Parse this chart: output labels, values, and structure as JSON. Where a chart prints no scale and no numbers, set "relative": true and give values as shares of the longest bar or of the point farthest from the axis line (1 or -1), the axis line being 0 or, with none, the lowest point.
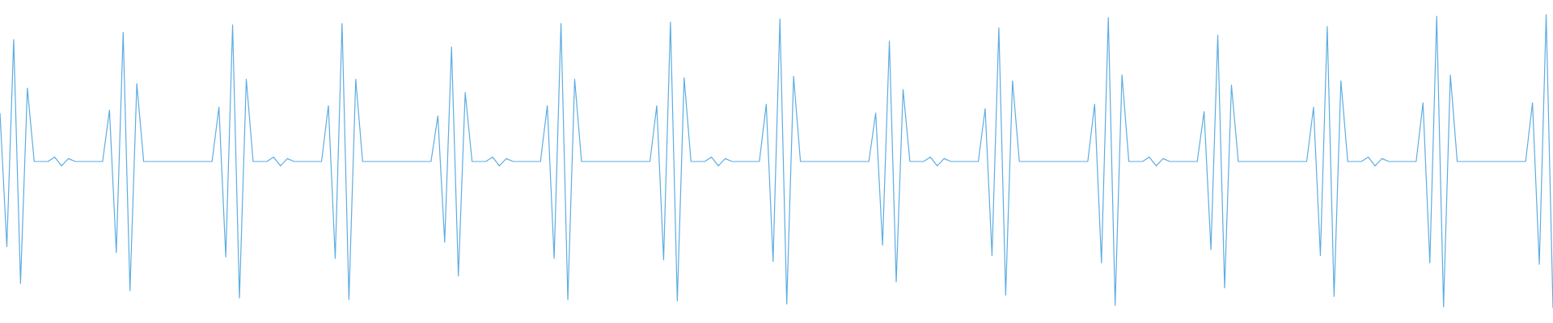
{
  "chart_data": {
    "type": "line",
    "relative": true,
    "color": "#5dade2",
    "categories": [
      null,
      null,
      null,
      null,
      null,
      null,
      null,
      null,
      null,
      null,
      null,
      null,
      null,
      null,
      null,
      null,
      null,
      null,
      null,
      null,
      null,
      null,
      null,
      null,
      null,
      null,
      null,
      null,
      null,
      null,
      null,
      null,
      null,
      null,
      null,
      null,
      null,
      null,
      null,
      null,
      null,
      null,
      null,
      null,
      null,
      null,
      null,
      null,
      null,
      null,
      null,
      null,
      null,
      null,
      null,
      null,
      null,
      null,
      null,
      null,
      null,
      null,
      null,
      null,
      null,
      null,
      null,
      null,
      null,
      null,
      null,
      null,
      null,
      null,
      null,
      null,
      null,
      null,
      null,
      null,
      null,
      null,
      null,
      null,
      null,
      null,
      null,
      null,
      null,
      null,
      null,
      null,
      null,
      null,
      null,
      null,
      null,
      null,
      null,
      null,
      null,
      null,
      null,
      null,
      null,
      null,
      null,
      null,
      null,
      null,
      null,
      null,
      null,
      null,
      null,
      null,
      null,
      null,
      null,
      null,
      null,
      null,
      null,
      null,
      null,
      null,
      null,
      null,
      null,
      null,
      null,
      null,
      null,
      null,
      null,
      null,
      null,
      null,
      null,
      null,
      null,
      null,
      null,
      null,
      null,
      null,
      null,
      null,
      null,
      null,
      null,
      null,
      null,
      null,
      null,
      null,
      null,
      null,
      null,
      null,
      null,
      null,
      null,
      null,
      null,
      null,
      null,
      null,
      null,
      null,
      null,
      null,
      null,
      null,
      null,
      null,
      null,
      null,
      null,
      null,
      null,
      null,
      null,
      null,
      null,
      null,
      null,
      null,
      null,
      null,
      null,
      null,
      null,
      null,
      null,
      null,
      null,
      null,
      null,
      null,
      null,
      null,
      null,
      null,
      null,
      null,
      null,
      null,
      null,
      null,
      null,
      null,
      null,
      null,
      null,
      null,
      null,
      null,
      null,
      null,
      null,
      null,
      null,
      null,
      null,
      null,
      null,
      null
    ],
    "values": [
      0.665,
      0.21,
      0.915,
      0.085,
      0.75,
      0.5,
      0.5,
      0.5,
      0.515,
      0.485,
      0.51,
      0.5,
      0.5,
      0.5,
      0.5,
      0.5,
      0.675,
      0.19,
      0.94,
      0.06,
      0.765,
      0.5,
      0.5,
      0.5,
      0.5,
      0.5,
      0.5,
      0.5,
      0.5,
      0.5,
      0.5,
      0.5,
      0.685,
      0.175,
      0.965,
      0.035,
      0.78,
      0.5,
      0.5,
      0.5,
      0.515,
      0.485,
      0.51,
      0.5,
      0.5,
      0.5,
      0.5,
      0.5,
      0.69,
      0.17,
      0.97,
      0.03,
      0.78,
      0.5,
      0.5,
      0.5,
      0.5,
      0.5,
      0.5,
      0.5,
      0.5,
      0.5,
      0.5,
      0.5,
      0.655,
      0.225,
      0.89,
      0.11,
      0.735,
      0.5,
      0.5,
      0.5,
      0.515,
      0.485,
      0.51,
      0.5,
      0.5,
      0.5,
      0.5,
      0.5,
      0.69,
      0.17,
      0.97,
      0.03,
      0.78,
      0.5,
      0.5,
      0.5,
      0.5,
      0.5,
      0.5,
      0.5,
      0.5,
      0.5,
      0.5,
      0.5,
      0.69,
      0.165,
      0.975,
      0.025,
      0.785,
      0.5,
      0.5,
      0.5,
      0.515,
      0.485,
      0.51,
      0.5,
      0.5,
      0.5,
      0.5,
      0.5,
      0.695,
      0.16,
      0.985,
      0.015,
      0.79,
      0.5,
      0.5,
      0.5,
      0.5,
      0.5,
      0.5,
      0.5,
      0.5,
      0.5,
      0.5,
      0.5,
      0.665,
      0.215,
      0.91,
      0.09,
      0.745,
      0.5,
      0.5,
      0.5,
      0.515,
      0.485,
      0.51,
      0.5,
      0.5,
      0.5,
      0.5,
      0.5,
      0.68,
      0.18,
      0.955,
      0.045,
      0.775,
      0.5,
      0.5,
      0.5,
      0.5,
      0.5,
      0.5,
      0.5,
      0.5,
      0.5,
      0.5,
      0.5,
      0.695,
      0.155,
      0.99,
      0.01,
      0.795,
      0.5,
      0.5,
      0.5,
      0.515,
      0.485,
      0.51,
      0.5,
      0.5,
      0.5,
      0.5,
      0.5,
      0.67,
      0.2,
      0.93,
      0.07,
      0.76,
      0.5,
      0.5,
      0.5,
      0.5,
      0.5,
      0.5,
      0.5,
      0.5,
      0.5,
      0.5,
      0.5,
      0.685,
      0.18,
      0.96,
      0.04,
      0.775,
      0.5,
      0.5,
      0.5,
      0.515,
      0.485,
      0.51,
      0.5,
      0.5,
      0.5,
      0.5,
      0.5,
      0.7,
      0.155,
      0.995,
      0.005,
      0.795,
      0.5,
      0.5,
      0.5,
      0.5,
      0.5,
      0.5,
      0.5,
      0.5,
      0.5,
      0.5,
      0.5,
      0.7,
      0.15,
      1,
      0
    ]
  }
}
